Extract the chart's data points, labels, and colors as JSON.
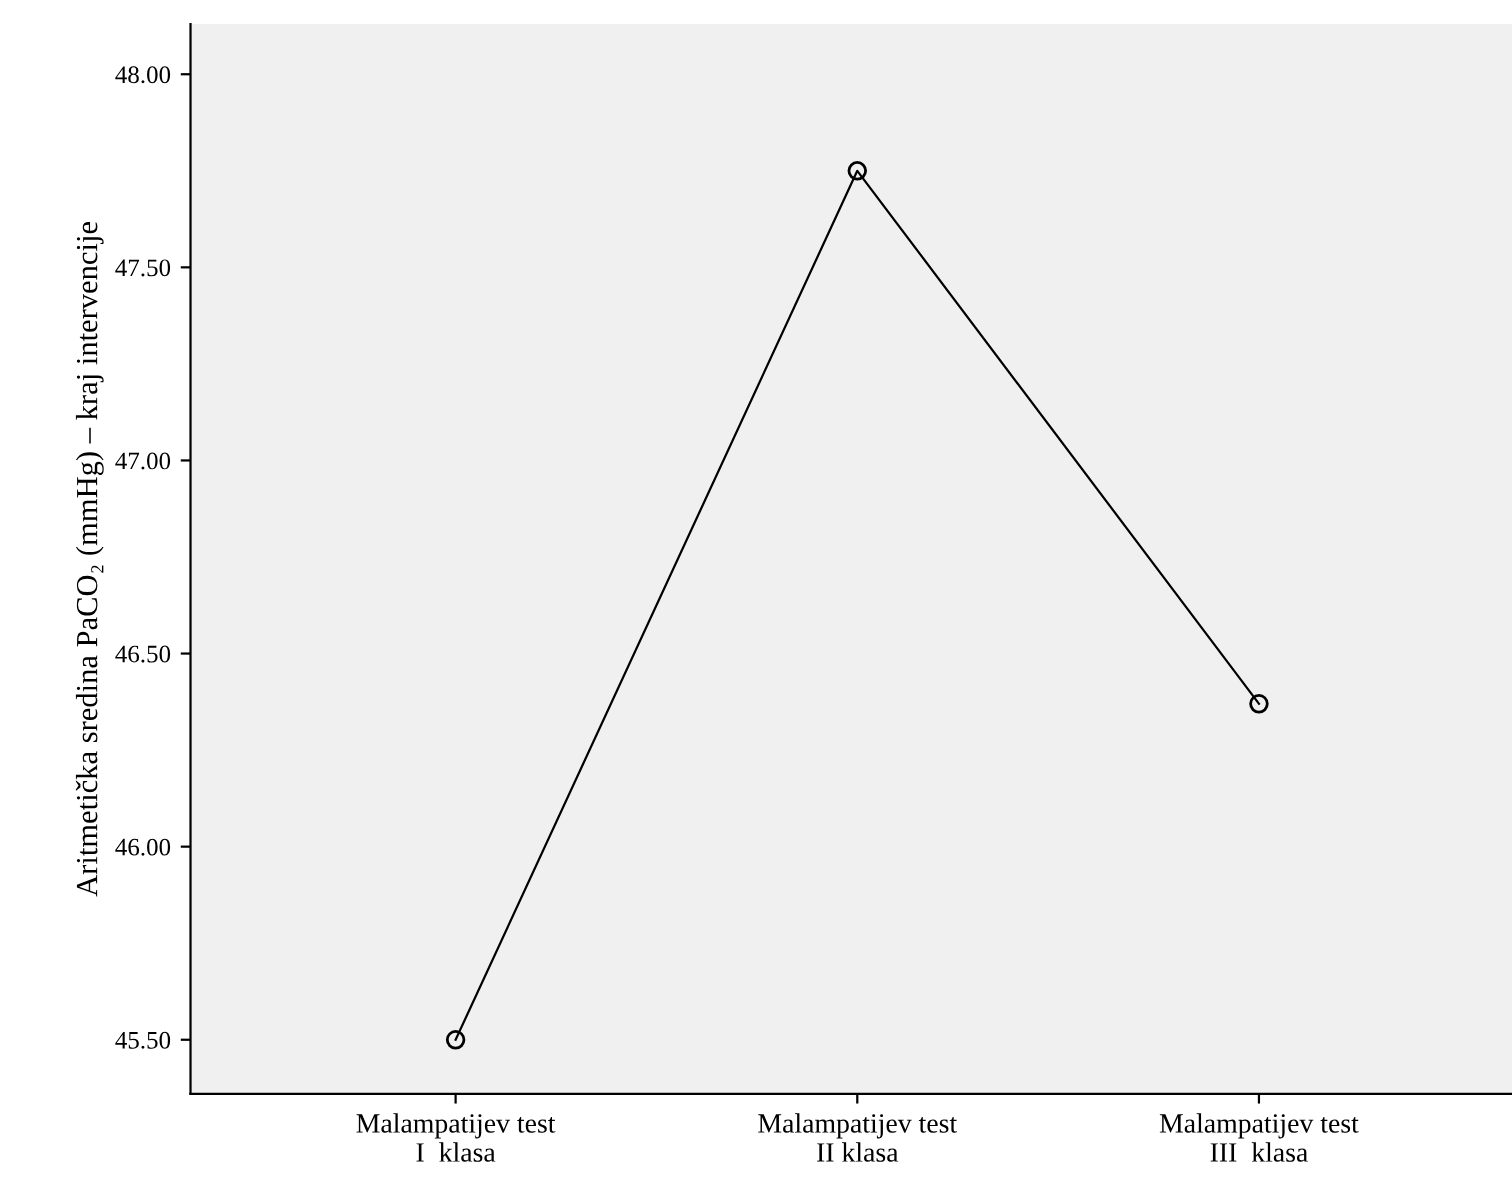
{
  "chart_data": {
    "type": "line",
    "ylabel": "Aritmetička sredina PaCO₂ (mmHg) – kraj intervencije",
    "categories": [
      "Malampatijev test\nI  klasa",
      "Malampatijev test\nII klasa",
      "Malampatijev test\nIII  klasa"
    ],
    "series": [
      {
        "color": "#000000",
        "values": [
          45.5,
          47.75,
          46.37
        ]
      }
    ],
    "ylim": [
      45.36,
      48.13
    ],
    "yticks": [
      {
        "value": 45.5,
        "label": "45.50"
      },
      {
        "value": 46.0,
        "label": "46.00"
      },
      {
        "value": 46.5,
        "label": "46.50"
      },
      {
        "value": 47.0,
        "label": "47.00"
      },
      {
        "value": 47.5,
        "label": "47.50"
      },
      {
        "value": 48.0,
        "label": "48.00"
      }
    ],
    "marker": "circle",
    "grid": false,
    "legend": false
  }
}
